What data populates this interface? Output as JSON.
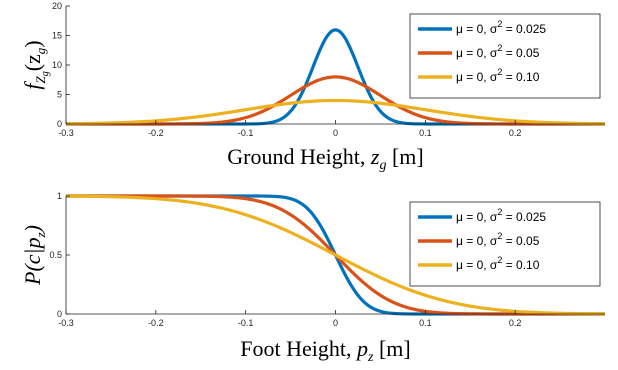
{
  "chart_data": [
    {
      "type": "line",
      "title": "",
      "xlabel": "Ground Height, z_g [m]",
      "xlabel_parts": {
        "text": "Ground Height, ",
        "var": "z",
        "sub": "g",
        "unit": "[m]"
      },
      "ylabel": "f_{Z_g}(z_g)",
      "xlim": [
        -0.3,
        0.3
      ],
      "ylim": [
        0,
        20
      ],
      "xticks": [
        -0.3,
        -0.2,
        -0.1,
        0,
        0.1,
        0.2
      ],
      "xtick_labels": [
        "-0.3",
        "-0.2",
        "-0.1",
        "0",
        "0.1",
        "0.2"
      ],
      "yticks": [
        0,
        5,
        10,
        15,
        20
      ],
      "ytick_labels": [
        "0",
        "5",
        "10",
        "15",
        "20"
      ],
      "legend_position": "top-right",
      "function": "normal_pdf",
      "series": [
        {
          "name": "μ = 0,   σ² = 0.025",
          "label_main": "μ = 0,   σ",
          "label_sup": "2",
          "label_tail": " = 0.025",
          "mu": 0,
          "sigma": 0.025,
          "color": "#0072BD"
        },
        {
          "name": "μ = 0,   σ² = 0.05",
          "label_main": "μ = 0,   σ",
          "label_sup": "2",
          "label_tail": " = 0.05",
          "mu": 0,
          "sigma": 0.05,
          "color": "#D95319"
        },
        {
          "name": "μ = 0,   σ² = 0.10",
          "label_main": "μ = 0,   σ",
          "label_sup": "2",
          "label_tail": " = 0.10",
          "mu": 0,
          "sigma": 0.1,
          "color": "#EDB120"
        }
      ]
    },
    {
      "type": "line",
      "title": "",
      "xlabel": "Foot Height, p_z [m]",
      "xlabel_parts": {
        "text": "Foot Height, ",
        "var": "p",
        "sub": "z",
        "unit": "[m]"
      },
      "ylabel": "P(c|p_z)",
      "xlim": [
        -0.3,
        0.3
      ],
      "ylim": [
        0,
        1
      ],
      "xticks": [
        -0.3,
        -0.2,
        -0.1,
        0,
        0.1,
        0.2
      ],
      "xtick_labels": [
        "-0.3",
        "-0.2",
        "-0.1",
        "0",
        "0.1",
        "0.2"
      ],
      "yticks": [
        0,
        0.5,
        1
      ],
      "ytick_labels": [
        "0",
        "0.5",
        "1"
      ],
      "legend_position": "middle-right",
      "function": "normal_survival",
      "series": [
        {
          "name": "μ = 0,   σ² = 0.025",
          "label_main": "μ = 0,   σ",
          "label_sup": "2",
          "label_tail": " = 0.025",
          "mu": 0,
          "sigma": 0.025,
          "color": "#0072BD"
        },
        {
          "name": "μ = 0,   σ² = 0.05",
          "label_main": "μ = 0,   σ",
          "label_sup": "2",
          "label_tail": " = 0.05",
          "mu": 0,
          "sigma": 0.05,
          "color": "#D95319"
        },
        {
          "name": "μ = 0,   σ² = 0.10",
          "label_main": "μ = 0,   σ",
          "label_sup": "2",
          "label_tail": " = 0.10",
          "mu": 0,
          "sigma": 0.1,
          "color": "#EDB120"
        }
      ]
    }
  ]
}
